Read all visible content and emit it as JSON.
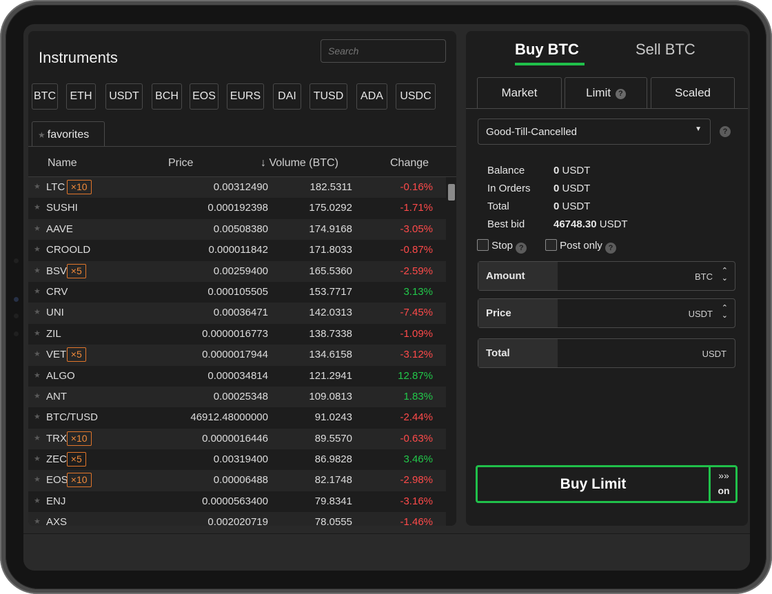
{
  "instruments": {
    "title": "Instruments",
    "search_placeholder": "Search",
    "currencies": [
      "BTC",
      "ETH",
      "USDT",
      "BCH",
      "EOS",
      "EURS",
      "DAI",
      "TUSD",
      "ADA",
      "USDC"
    ],
    "favorites_tab": "favorites",
    "columns": {
      "name": "Name",
      "price": "Price",
      "volume": "↓ Volume (BTC)",
      "change": "Change"
    },
    "rows": [
      {
        "name": "LTC",
        "mult": "×10",
        "price": "0.00312490",
        "volume": "182.5311",
        "change": "-0.16%",
        "dir": "neg"
      },
      {
        "name": "SUSHI",
        "mult": "",
        "price": "0.000192398",
        "volume": "175.0292",
        "change": "-1.71%",
        "dir": "neg"
      },
      {
        "name": "AAVE",
        "mult": "",
        "price": "0.00508380",
        "volume": "174.9168",
        "change": "-3.05%",
        "dir": "neg"
      },
      {
        "name": "CROOLD",
        "mult": "",
        "price": "0.000011842",
        "volume": "171.8033",
        "change": "-0.87%",
        "dir": "neg"
      },
      {
        "name": "BSV",
        "mult": "×5",
        "price": "0.00259400",
        "volume": "165.5360",
        "change": "-2.59%",
        "dir": "neg"
      },
      {
        "name": "CRV",
        "mult": "",
        "price": "0.000105505",
        "volume": "153.7717",
        "change": "3.13%",
        "dir": "pos"
      },
      {
        "name": "UNI",
        "mult": "",
        "price": "0.00036471",
        "volume": "142.0313",
        "change": "-7.45%",
        "dir": "neg"
      },
      {
        "name": "ZIL",
        "mult": "",
        "price": "0.0000016773",
        "volume": "138.7338",
        "change": "-1.09%",
        "dir": "neg"
      },
      {
        "name": "VET",
        "mult": "×5",
        "price": "0.0000017944",
        "volume": "134.6158",
        "change": "-3.12%",
        "dir": "neg"
      },
      {
        "name": "ALGO",
        "mult": "",
        "price": "0.000034814",
        "volume": "121.2941",
        "change": "12.87%",
        "dir": "pos"
      },
      {
        "name": "ANT",
        "mult": "",
        "price": "0.00025348",
        "volume": "109.0813",
        "change": "1.83%",
        "dir": "pos"
      },
      {
        "name": "BTC/TUSD",
        "mult": "",
        "price": "46912.48000000",
        "volume": "91.0243",
        "change": "-2.44%",
        "dir": "neg"
      },
      {
        "name": "TRX",
        "mult": "×10",
        "price": "0.0000016446",
        "volume": "89.5570",
        "change": "-0.63%",
        "dir": "neg"
      },
      {
        "name": "ZEC",
        "mult": "×5",
        "price": "0.00319400",
        "volume": "86.9828",
        "change": "3.46%",
        "dir": "pos"
      },
      {
        "name": "EOS",
        "mult": "×10",
        "price": "0.00006488",
        "volume": "82.1748",
        "change": "-2.98%",
        "dir": "neg"
      },
      {
        "name": "ENJ",
        "mult": "",
        "price": "0.0000563400",
        "volume": "79.8341",
        "change": "-3.16%",
        "dir": "neg"
      },
      {
        "name": "AXS",
        "mult": "",
        "price": "0.002020719",
        "volume": "78.0555",
        "change": "-1.46%",
        "dir": "neg"
      }
    ]
  },
  "order": {
    "buy_tab": "Buy BTC",
    "sell_tab": "Sell BTC",
    "types": {
      "market": "Market",
      "limit": "Limit",
      "scaled": "Scaled"
    },
    "time_in_force": "Good-Till-Cancelled",
    "balance_label": "Balance",
    "balance_value": "0",
    "balance_unit": "USDT",
    "in_orders_label": "In Orders",
    "in_orders_value": "0",
    "in_orders_unit": "USDT",
    "total_label": "Total",
    "total_value": "0",
    "total_unit": "USDT",
    "best_bid_label": "Best bid",
    "best_bid_value": "46748.30",
    "best_bid_unit": "USDT",
    "stop_label": "Stop",
    "post_only_label": "Post only",
    "amount_label": "Amount",
    "amount_unit": "BTC",
    "price_label": "Price",
    "price_unit": "USDT",
    "total_field_label": "Total",
    "total_field_unit": "USDT",
    "submit_label": "Buy  Limit",
    "fast_label": "on"
  },
  "colors": {
    "accent": "#20c04a",
    "negative": "#ff4a4a",
    "positive": "#22c84a",
    "multiplier": "#e2762a"
  }
}
